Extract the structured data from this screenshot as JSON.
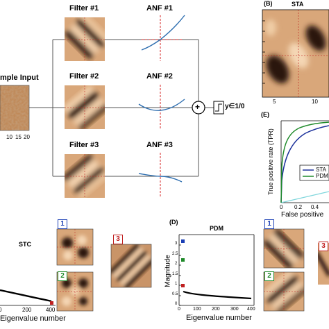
{
  "top": {
    "input_label": "mple Input",
    "input_ticks": [
      "10",
      "15",
      "20"
    ],
    "filters": [
      "Filter #1",
      "Filter #2",
      "Filter #3"
    ],
    "anfs": [
      "ANF #1",
      "ANF #2",
      "ANF #3"
    ],
    "output_label": "y∈1/0",
    "sum_symbol": "+"
  },
  "panel_b": {
    "tag": "(B)",
    "title": "STA",
    "ticks": [
      "5",
      "10"
    ]
  },
  "panel_e": {
    "tag": "(E)",
    "ylabel": "True positive rate (TPR)",
    "xlabel": "False positive",
    "x_ticks": [
      "0",
      "0.2",
      "0.4"
    ],
    "legend": [
      "STA",
      "PDM"
    ]
  },
  "panel_c": {
    "title": "STC",
    "xlabel": "Eigenvalue number",
    "x_ticks": [
      "0",
      "200",
      "400"
    ],
    "badges": [
      "1",
      "2",
      "3"
    ]
  },
  "panel_d": {
    "tag": "(D)",
    "title": "PDM",
    "ylabel": "Magnitude",
    "xlabel": "Eigenvalue number",
    "x_ticks": [
      "0",
      "100",
      "200",
      "300",
      "400"
    ],
    "y_ticks": [
      "0",
      "0.5",
      "1",
      "1.5",
      "2",
      "2.5",
      "3"
    ],
    "badges": [
      "1",
      "2",
      "3"
    ]
  },
  "colors": {
    "filter_light": "#e8c29a",
    "filter_dark": "#2a1508",
    "anf_curve": "#2f6fb0",
    "dashed": "#d62020",
    "sta_line": "#1a2f9a",
    "pdm_line": "#1f8a2a",
    "chance_line": "#7fd6dc",
    "badge_blue": "#1a3fb5",
    "badge_green": "#1f8a2a",
    "badge_red": "#c02020"
  }
}
